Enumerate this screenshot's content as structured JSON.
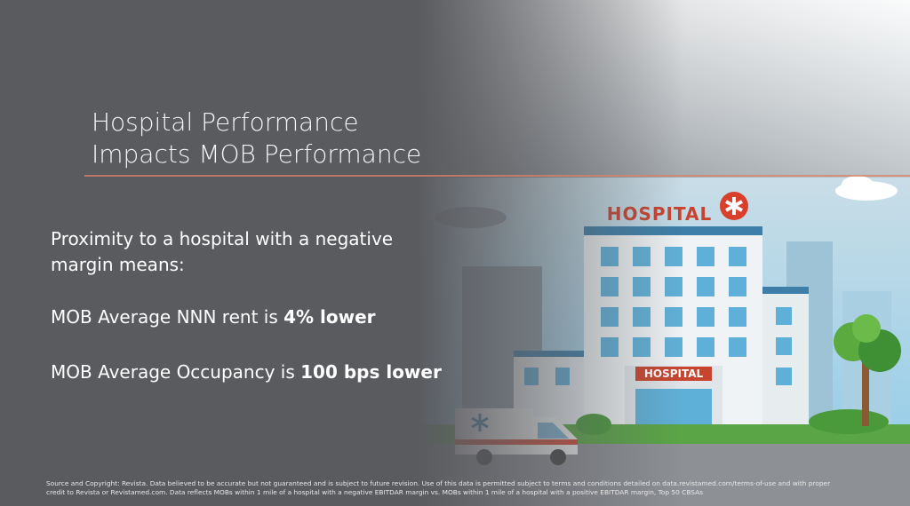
{
  "slide": {
    "title_lines": [
      "Hospital Performance",
      "Impacts MOB Performance"
    ],
    "intro": "Proximity to a hospital with a negative margin means:",
    "statements": [
      {
        "text": "MOB Average NNN rent is ",
        "bold": "4% lower"
      },
      {
        "text": "MOB Average Occupancy is ",
        "bold": "100 bps lower"
      }
    ],
    "illustration_signs": [
      "HOSPITAL",
      "HOSPITAL"
    ],
    "footer": "Source and Copyright: Revista. Data believed to be accurate but not guaranteed and is subject to future revision. Use of this data is permitted subject to terms and conditions detailed on data.revistamed.com/terms-of-use and with proper credit to Revista or Revistamed.com. Data reflects MOBs within 1 mile of a hospital with a negative EBITDAR margin vs. MOBs within 1 mile of a hospital with a positive EBITDAR margin, Top 50 CBSAs"
  }
}
